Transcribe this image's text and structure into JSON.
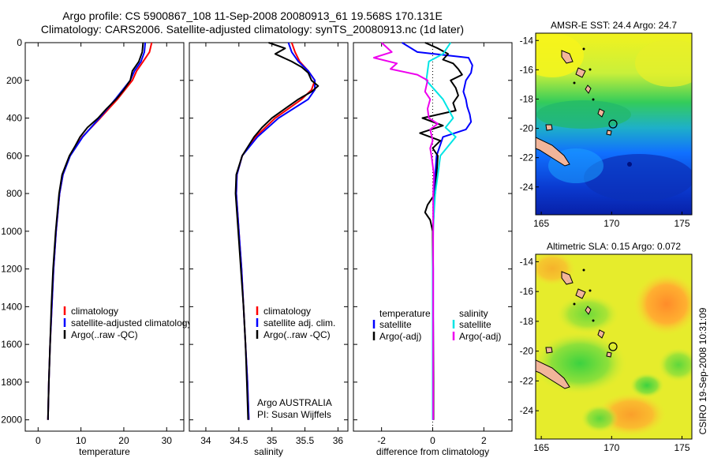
{
  "header": {
    "line1": "Argo profile: CS 5900867_108 11-Sep-2008 20080913_61 19.568S 170.131E",
    "line2": "Climatology: CARS2006. Satellite-adjusted climatology: synTS_20080913.nc (1d later)"
  },
  "colors": {
    "climatology": "#ff0000",
    "satellite": "#0000ff",
    "argo": "#000000",
    "sat_diff": "#00e5e5",
    "argo_adj_sal": "#ee00ee"
  },
  "chart_data": [
    {
      "type": "line",
      "id": "temperature",
      "xlabel": "temperature",
      "ylabel": "",
      "xlim": [
        -3,
        34
      ],
      "ylim": [
        2060,
        0
      ],
      "xticks": [
        0,
        10,
        20,
        30
      ],
      "yticks": [
        0,
        200,
        400,
        600,
        800,
        1000,
        1200,
        1400,
        1600,
        1800,
        2000
      ],
      "legend": [
        "climatology",
        "satellite-adjusted climatology",
        "Argo(..raw -QC)"
      ],
      "series": [
        {
          "name": "climatology",
          "color": "#ff0000",
          "depth": [
            0,
            50,
            100,
            150,
            200,
            300,
            400,
            500,
            600,
            700,
            800,
            1000,
            1200,
            1400,
            1600,
            1800,
            2000
          ],
          "values": [
            26.5,
            26,
            24.5,
            23,
            22,
            18.5,
            14.5,
            10.3,
            7.4,
            5.8,
            5,
            4.2,
            3.6,
            3.2,
            2.8,
            2.5,
            2.3
          ]
        },
        {
          "name": "satellite-adjusted climatology",
          "color": "#0000ff",
          "depth": [
            0,
            50,
            100,
            150,
            200,
            300,
            400,
            500,
            600,
            700,
            800,
            1000,
            1200,
            1400,
            1600,
            1800,
            2000
          ],
          "values": [
            25,
            24.8,
            24,
            22.5,
            21.5,
            18,
            14.3,
            10.4,
            7.5,
            5.8,
            5,
            4.2,
            3.6,
            3.2,
            2.8,
            2.5,
            2.3
          ]
        },
        {
          "name": "Argo(..raw -QC)",
          "color": "#000000",
          "depth": [
            0,
            50,
            100,
            150,
            200,
            250,
            300,
            350,
            400,
            450,
            500,
            550,
            600,
            700,
            800,
            1000,
            1200,
            1400,
            1600,
            1800,
            2000
          ],
          "values": [
            24.5,
            24.3,
            23.5,
            22,
            21.5,
            20,
            18.2,
            16,
            14,
            11.5,
            9.8,
            8.6,
            7.3,
            5.6,
            4.9,
            4.1,
            3.5,
            3.1,
            2.8,
            2.5,
            2.3
          ]
        }
      ]
    },
    {
      "type": "line",
      "id": "salinity",
      "xlabel": "salinity",
      "ylabel": "",
      "xlim": [
        33.75,
        36.15
      ],
      "ylim": [
        2060,
        0
      ],
      "xticks": [
        34,
        34.5,
        35,
        35.5,
        36
      ],
      "legend": [
        "climatology",
        "satellite adj. clim.",
        "Argo(..raw -QC)"
      ],
      "annotation": [
        "Argo AUSTRALIA",
        "PI: Susan Wijffels"
      ],
      "series": [
        {
          "name": "climatology",
          "color": "#ff0000",
          "depth": [
            0,
            50,
            100,
            150,
            200,
            250,
            300,
            400,
            500,
            600,
            700,
            800,
            1000,
            1200,
            1400,
            1600,
            1800,
            2000
          ],
          "values": [
            35.3,
            35.35,
            35.42,
            35.55,
            35.65,
            35.6,
            35.45,
            35.05,
            34.75,
            34.55,
            34.47,
            34.46,
            34.5,
            34.54,
            34.57,
            34.6,
            34.63,
            34.65
          ]
        },
        {
          "name": "satellite adj. clim.",
          "color": "#0000ff",
          "depth": [
            0,
            50,
            100,
            150,
            200,
            250,
            300,
            400,
            500,
            600,
            700,
            800,
            1000,
            1200,
            1400,
            1600,
            1800,
            2000
          ],
          "values": [
            35.25,
            35.3,
            35.4,
            35.55,
            35.65,
            35.65,
            35.55,
            35.1,
            34.78,
            34.55,
            34.47,
            34.46,
            34.5,
            34.54,
            34.57,
            34.6,
            34.63,
            34.65
          ]
        },
        {
          "name": "Argo(..raw -QC)",
          "color": "#000000",
          "depth": [
            0,
            30,
            60,
            100,
            130,
            160,
            200,
            230,
            260,
            300,
            350,
            400,
            450,
            500,
            600,
            700,
            800,
            1000,
            1200,
            1400,
            1600,
            1800,
            2000
          ],
          "values": [
            34.95,
            35.2,
            35.05,
            35.3,
            35.45,
            35.55,
            35.6,
            35.7,
            35.6,
            35.4,
            35.2,
            35.0,
            34.85,
            34.73,
            34.55,
            34.46,
            34.45,
            34.49,
            34.53,
            34.57,
            34.6,
            34.62,
            34.64
          ]
        }
      ]
    },
    {
      "type": "line",
      "id": "difference",
      "xlabel": "difference from climatology",
      "xlim": [
        -3.1,
        3.1
      ],
      "ylim": [
        2060,
        0
      ],
      "xticks": [
        -2,
        0,
        2
      ],
      "legend": {
        "temperature_header": "temperature",
        "salinity_header": "salinity",
        "entries": [
          "satellite",
          "Argo(-adj)",
          "satellite",
          "Argo(-adj)"
        ]
      },
      "series": [
        {
          "name": "temperature satellite",
          "color": "#0000ff",
          "depth": [
            0,
            50,
            80,
            120,
            160,
            200,
            260,
            300,
            340,
            380,
            420,
            460,
            500,
            600,
            700,
            800,
            900,
            1000,
            1200,
            1500,
            2000
          ],
          "values": [
            -1.2,
            -0.6,
            1.4,
            1.55,
            1.5,
            1.3,
            1.2,
            1.3,
            1.35,
            1.45,
            1.5,
            1.3,
            0.4,
            0.15,
            0.1,
            0.05,
            0.05,
            0.0,
            0.02,
            0.02,
            0.02
          ]
        },
        {
          "name": "temperature Argo(-adj)",
          "color": "#000000",
          "depth": [
            0,
            30,
            60,
            90,
            110,
            140,
            170,
            200,
            240,
            280,
            320,
            360,
            400,
            440,
            480,
            520,
            560,
            600,
            700,
            800,
            860,
            900,
            940,
            1000,
            1200,
            1500,
            1800,
            2000
          ],
          "values": [
            -0.3,
            0.2,
            0.6,
            0.4,
            0.8,
            1.0,
            1.15,
            0.7,
            0.9,
            1.0,
            0.8,
            0.9,
            -0.4,
            0.4,
            -0.5,
            0.3,
            0.0,
            0.2,
            0.15,
            0.1,
            -0.2,
            -0.3,
            -0.1,
            0.0,
            0.0,
            0.02,
            0.03,
            0.03
          ]
        },
        {
          "name": "salinity satellite",
          "color": "#00e5e5",
          "depth": [
            0,
            60,
            100,
            200,
            300,
            400,
            450,
            500,
            600,
            700,
            800,
            900,
            1000,
            1200,
            1500,
            2000
          ],
          "values": [
            0.7,
            0.4,
            -0.15,
            -0.25,
            0.4,
            0.8,
            0.5,
            0.9,
            0.3,
            0.2,
            0.1,
            0.05,
            0.02,
            0.0,
            0.0,
            0.0
          ]
        },
        {
          "name": "salinity Argo(-adj)",
          "color": "#ee00ee",
          "depth": [
            0,
            50,
            80,
            110,
            140,
            170,
            200,
            260,
            300,
            350,
            400,
            430,
            460,
            490,
            520,
            560,
            600,
            650,
            700,
            800,
            900,
            1000,
            1200,
            1500,
            2000
          ],
          "values": [
            -2.0,
            -1.6,
            -2.3,
            -1.4,
            -1.65,
            -0.6,
            -0.2,
            -0.3,
            -0.1,
            -0.2,
            -0.15,
            0.2,
            -0.1,
            -0.05,
            0.0,
            -0.1,
            -0.05,
            0.0,
            0.05,
            0.02,
            0.02,
            0.02,
            0.02,
            0.02,
            0.02
          ]
        }
      ]
    },
    {
      "type": "heatmap",
      "id": "sst_map",
      "title": "AMSR-E SST: 24.4 Argo: 24.7",
      "xlim": [
        164.6,
        175.7
      ],
      "ylim": [
        -25.9,
        -13.5
      ],
      "xticks": [
        165,
        170,
        175
      ],
      "yticks": [
        -14,
        -16,
        -18,
        -20,
        -22,
        -24
      ],
      "marker": {
        "lon": 170.131,
        "lat": -19.568
      }
    },
    {
      "type": "heatmap",
      "id": "sla_map",
      "title": "Altimetric SLA: 0.15 Argo: 0.072",
      "xlim": [
        164.6,
        175.7
      ],
      "ylim": [
        -25.9,
        -13.5
      ],
      "xticks": [
        165,
        170,
        175
      ],
      "yticks": [
        -14,
        -16,
        -18,
        -20,
        -22,
        -24
      ],
      "marker": {
        "lon": 170.131,
        "lat": -19.568
      }
    }
  ],
  "side_label": "CSIRO 19-Sep-2008 10:31:09"
}
